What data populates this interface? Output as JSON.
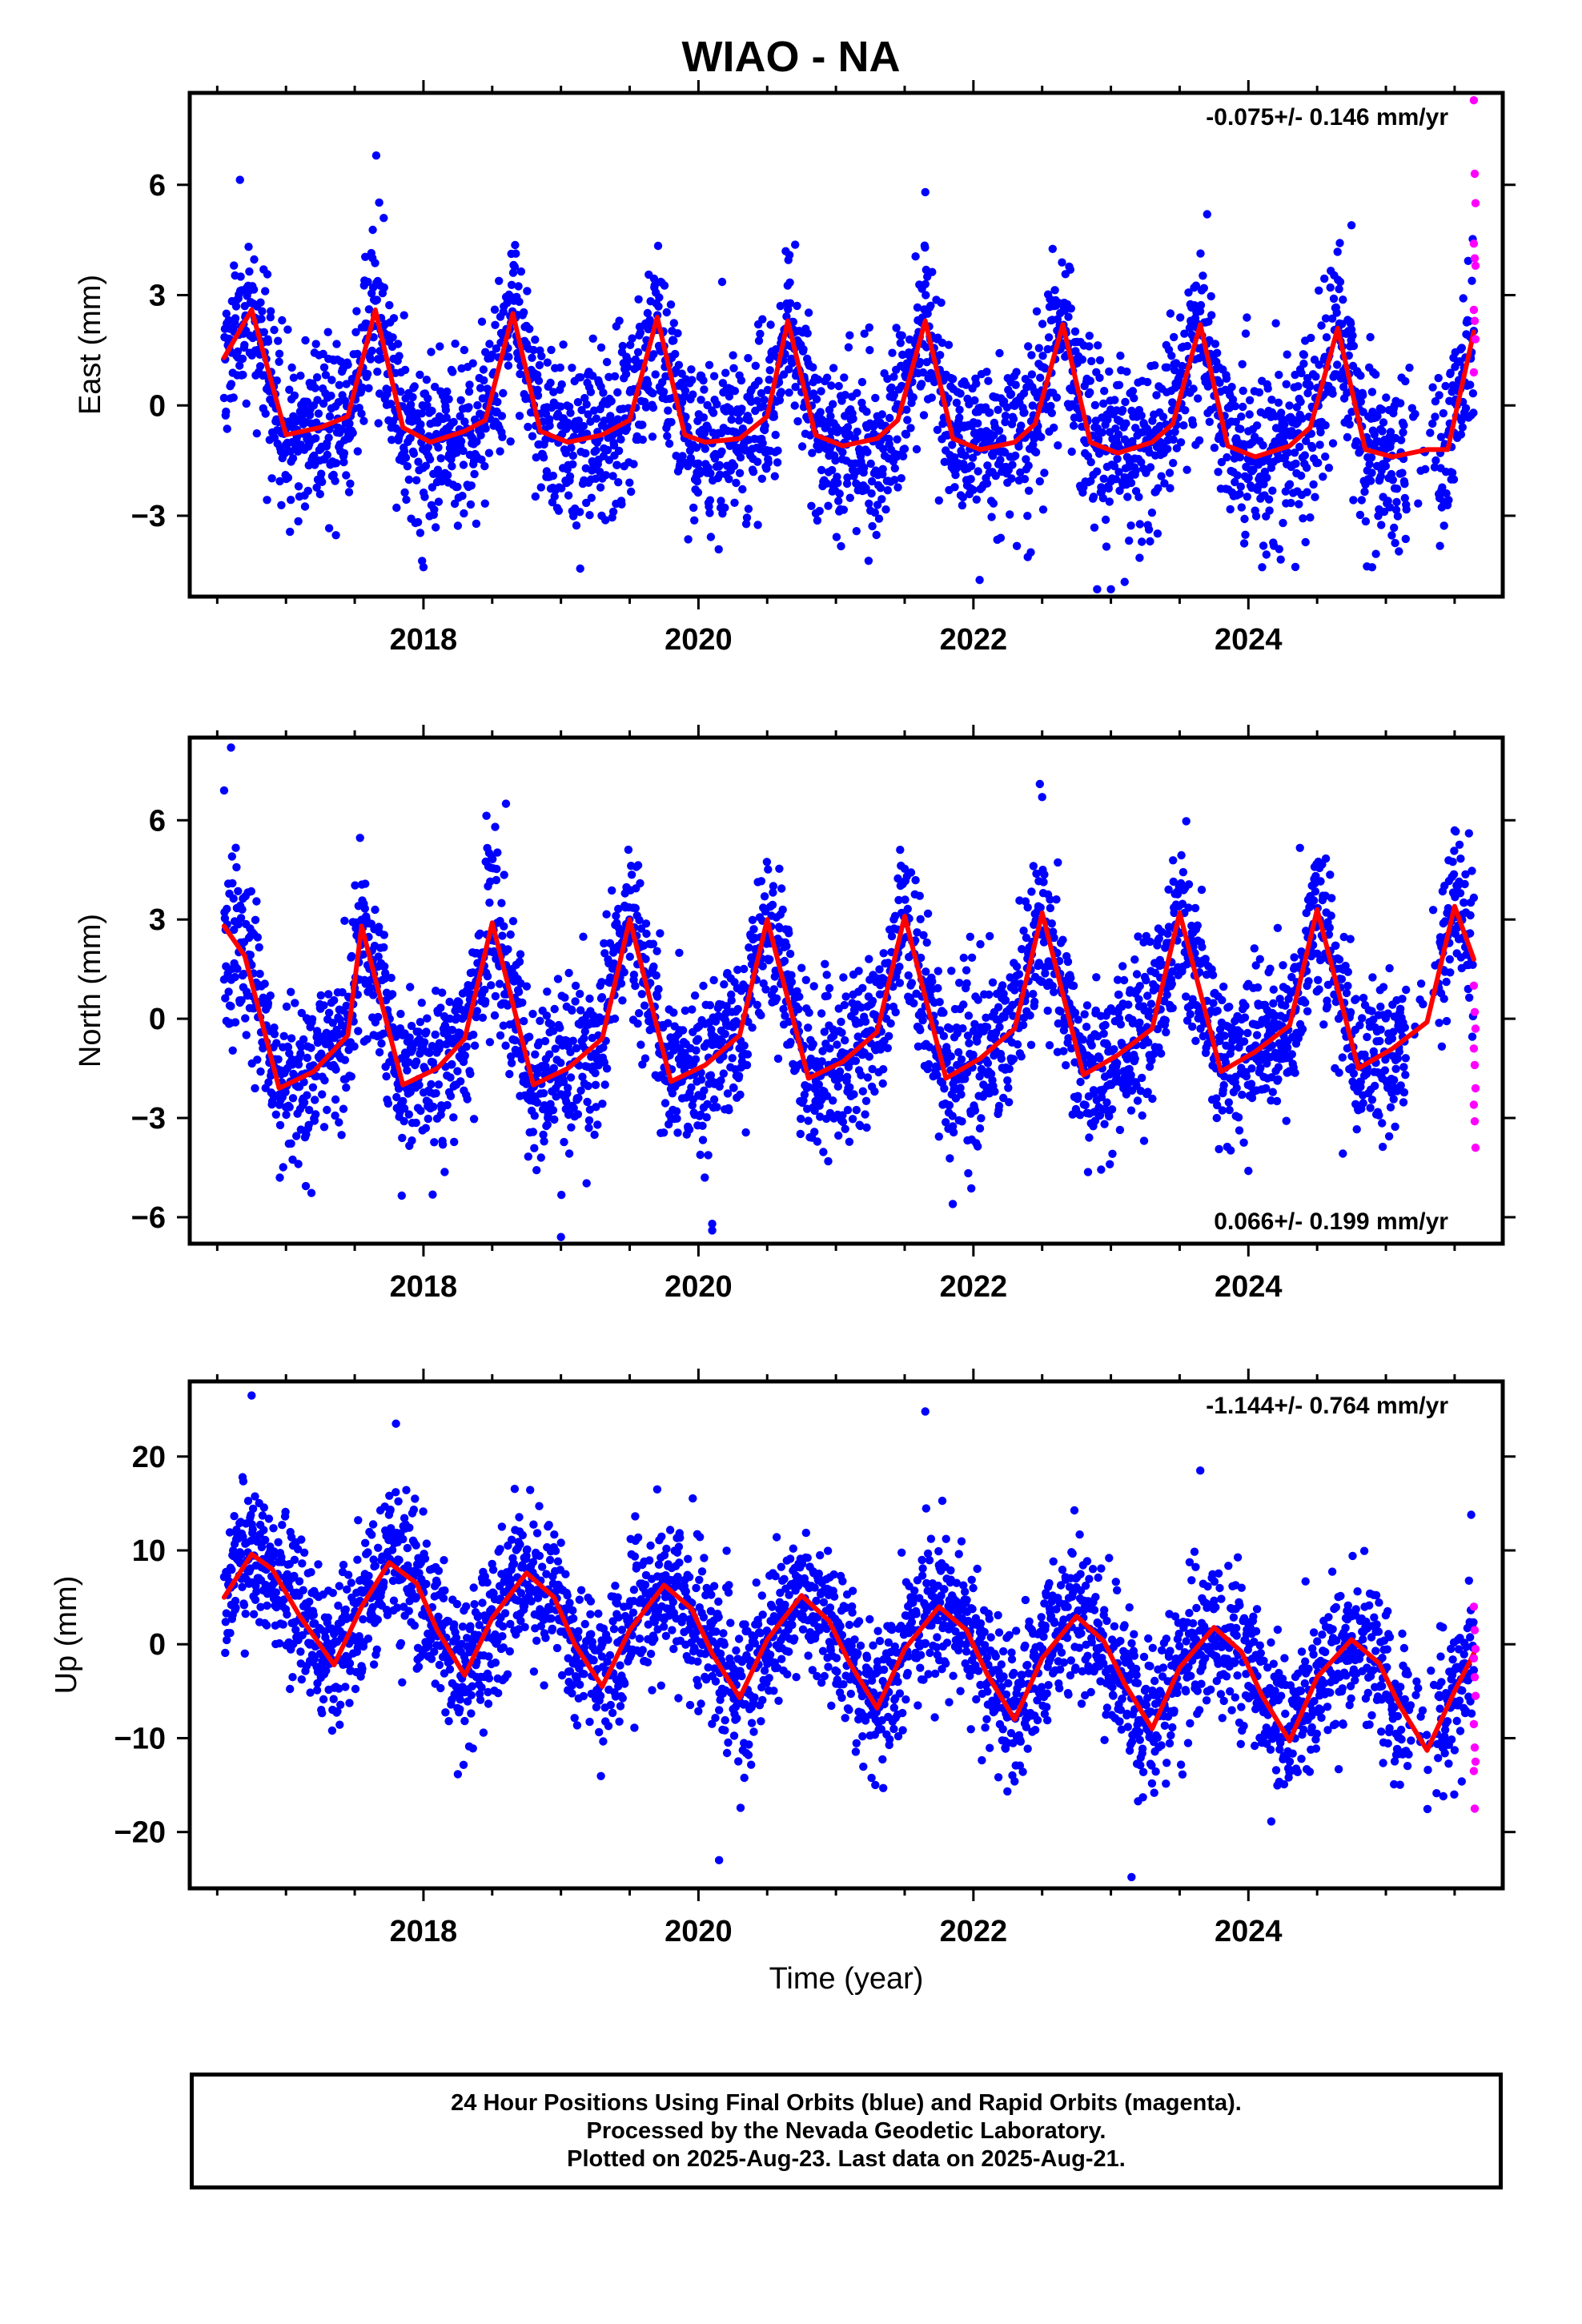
{
  "title": "WIAO - NA",
  "colors": {
    "final_orbits": "#0000ff",
    "rapid_orbits": "#ff00ff",
    "fit": "#ff0000"
  },
  "footer": {
    "line1": "24 Hour Positions Using Final Orbits (blue) and Rapid Orbits (magenta).",
    "line2": "Processed by the Nevada Geodetic Laboratory.",
    "line3": "Plotted on 2025-Aug-23. Last data on 2025-Aug-21."
  },
  "chart_data": [
    {
      "type": "scatter",
      "panel": "east",
      "ylabel": "East (mm)",
      "xlabel": "",
      "xlim": [
        2016.3,
        2025.85
      ],
      "ylim": [
        -5.2,
        8.5
      ],
      "xticks": [
        2018,
        2020,
        2022,
        2024
      ],
      "yticks": [
        -3,
        0,
        3,
        6
      ],
      "rate_label": "-0.075+/- 0.146 mm/yr",
      "rate_position": "top-right",
      "grid": false,
      "data_start": 2016.55,
      "data_end": 2025.64,
      "fit": {
        "name": "seasonal fit",
        "x": [
          2016.55,
          2016.75,
          2017.0,
          2017.25,
          2017.45,
          2017.65,
          2017.85,
          2018.05,
          2018.3,
          2018.45,
          2018.65,
          2018.85,
          2019.05,
          2019.3,
          2019.5,
          2019.7,
          2019.9,
          2020.05,
          2020.3,
          2020.5,
          2020.65,
          2020.85,
          2021.05,
          2021.3,
          2021.45,
          2021.65,
          2021.85,
          2022.05,
          2022.3,
          2022.45,
          2022.65,
          2022.85,
          2023.05,
          2023.3,
          2023.45,
          2023.65,
          2023.85,
          2024.05,
          2024.3,
          2024.45,
          2024.65,
          2024.85,
          2025.05,
          2025.3,
          2025.45,
          2025.64
        ],
        "y": [
          1.3,
          2.6,
          -0.8,
          -0.6,
          -0.3,
          2.6,
          -0.6,
          -1.0,
          -0.7,
          -0.4,
          2.5,
          -0.7,
          -1.0,
          -0.8,
          -0.4,
          2.4,
          -0.8,
          -1.0,
          -0.9,
          -0.3,
          2.3,
          -0.8,
          -1.1,
          -0.9,
          -0.4,
          2.3,
          -0.9,
          -1.2,
          -1.0,
          -0.5,
          2.2,
          -1.0,
          -1.3,
          -1.0,
          -0.5,
          2.2,
          -1.1,
          -1.4,
          -1.1,
          -0.6,
          2.1,
          -1.2,
          -1.4,
          -1.2,
          -1.2,
          2.0
        ]
      },
      "scatter_model": {
        "seasonal_amplitude": 1.85,
        "mean": 0.6,
        "noise_sd": 1.15,
        "seed": 11
      },
      "rapid": {
        "x_start": 2025.64,
        "values": [
          8.3,
          6.3,
          5.5,
          4.4,
          4.0,
          3.8,
          2.6,
          2.3,
          1.8,
          0.9
        ]
      },
      "outliers": {
        "x": [
          2018.0,
          2021.65,
          2022.9,
          2023.0,
          2023.1,
          2024.1,
          2024.9,
          2023.7,
          2024.75
        ],
        "y": [
          -4.4,
          5.8,
          -5.0,
          -5.0,
          -4.8,
          -4.4,
          -4.4,
          5.2,
          4.9
        ]
      }
    },
    {
      "type": "scatter",
      "panel": "north",
      "ylabel": "North (mm)",
      "xlabel": "",
      "xlim": [
        2016.3,
        2025.85
      ],
      "ylim": [
        -6.8,
        8.5
      ],
      "xticks": [
        2018,
        2020,
        2022,
        2024
      ],
      "yticks": [
        -6,
        -3,
        0,
        3,
        6
      ],
      "rate_label": "0.066+/- 0.199 mm/yr",
      "rate_position": "bottom-right",
      "grid": false,
      "data_start": 2016.55,
      "data_end": 2025.64,
      "fit": {
        "name": "seasonal fit",
        "x": [
          2016.55,
          2016.7,
          2016.95,
          2017.2,
          2017.45,
          2017.55,
          2017.85,
          2018.1,
          2018.3,
          2018.5,
          2018.8,
          2019.05,
          2019.3,
          2019.5,
          2019.8,
          2020.05,
          2020.3,
          2020.5,
          2020.8,
          2021.05,
          2021.3,
          2021.5,
          2021.8,
          2022.05,
          2022.3,
          2022.5,
          2022.8,
          2023.05,
          2023.3,
          2023.5,
          2023.8,
          2024.05,
          2024.3,
          2024.5,
          2024.8,
          2025.05,
          2025.3,
          2025.5,
          2025.64
        ],
        "y": [
          2.8,
          1.9,
          -2.1,
          -1.6,
          -0.5,
          2.8,
          -2.0,
          -1.5,
          -0.6,
          2.9,
          -2.0,
          -1.5,
          -0.6,
          3.0,
          -1.9,
          -1.4,
          -0.5,
          3.0,
          -1.8,
          -1.3,
          -0.4,
          3.1,
          -1.8,
          -1.2,
          -0.3,
          3.2,
          -1.7,
          -1.1,
          -0.3,
          3.2,
          -1.6,
          -1.0,
          -0.2,
          3.3,
          -1.5,
          -0.9,
          -0.1,
          3.4,
          1.8
        ]
      },
      "scatter_model": {
        "seasonal_amplitude": 2.4,
        "mean": 0.4,
        "noise_sd": 1.25,
        "seed": 23
      },
      "rapid": {
        "x_start": 2025.64,
        "values": [
          1.0,
          0.2,
          -0.3,
          -0.9,
          -1.4,
          -2.1,
          -2.6,
          -3.1,
          -3.9
        ]
      },
      "outliers": {
        "x": [
          2016.6,
          2016.55,
          2019.0,
          2020.1,
          2020.1,
          2021.85,
          2024.0,
          2018.6,
          2022.5
        ],
        "y": [
          8.2,
          6.9,
          -6.6,
          -6.2,
          -6.4,
          -5.6,
          -4.6,
          6.5,
          6.7
        ]
      }
    },
    {
      "type": "scatter",
      "panel": "up",
      "ylabel": "Up (mm)",
      "xlabel": "Time (year)",
      "xlim": [
        2016.3,
        2025.85
      ],
      "ylim": [
        -26,
        28
      ],
      "xticks": [
        2018,
        2020,
        2022,
        2024
      ],
      "yticks": [
        -20,
        -10,
        0,
        10,
        20
      ],
      "rate_label": "-1.144+/- 0.764 mm/yr",
      "rate_position": "top-right",
      "grid": false,
      "data_start": 2016.55,
      "data_end": 2025.64,
      "fit": {
        "name": "seasonal fit",
        "x": [
          2016.55,
          2016.75,
          2016.9,
          2017.1,
          2017.35,
          2017.55,
          2017.75,
          2017.95,
          2018.1,
          2018.3,
          2018.5,
          2018.75,
          2018.95,
          2019.1,
          2019.3,
          2019.5,
          2019.75,
          2019.95,
          2020.1,
          2020.3,
          2020.5,
          2020.75,
          2020.95,
          2021.1,
          2021.3,
          2021.5,
          2021.75,
          2021.95,
          2022.1,
          2022.3,
          2022.5,
          2022.75,
          2022.95,
          2023.1,
          2023.3,
          2023.5,
          2023.75,
          2023.95,
          2024.1,
          2024.3,
          2024.5,
          2024.75,
          2024.95,
          2025.1,
          2025.3,
          2025.5,
          2025.64
        ],
        "y": [
          5.0,
          9.6,
          8.0,
          3.0,
          -2.2,
          4.0,
          8.7,
          6.5,
          1.5,
          -3.3,
          2.8,
          7.6,
          5.0,
          0.0,
          -4.5,
          1.5,
          6.3,
          3.8,
          -1.0,
          -5.7,
          0.5,
          5.2,
          2.5,
          -2.0,
          -6.8,
          -0.5,
          4.0,
          1.5,
          -3.2,
          -8.0,
          -1.5,
          3.0,
          0.3,
          -4.2,
          -9.0,
          -2.5,
          1.8,
          -0.8,
          -5.5,
          -10.3,
          -3.5,
          0.5,
          -2.0,
          -6.5,
          -11.3,
          -5.0,
          -1.0
        ]
      },
      "scatter_model": {
        "seasonal_amplitude": 5.0,
        "mean": 0.0,
        "noise_sd": 4.0,
        "seed": 37
      },
      "rapid": {
        "x_start": 2025.64,
        "values": [
          4.0,
          1.5,
          -0.5,
          -1.5,
          -3.5,
          -5.5,
          -8.5,
          -11.0,
          -12.5,
          -13.5,
          -17.5
        ]
      },
      "outliers": {
        "x": [
          2016.75,
          2017.8,
          2021.65,
          2020.15,
          2023.15,
          2019.7,
          2023.65
        ],
        "y": [
          26.5,
          23.5,
          24.8,
          -23.0,
          -24.8,
          16.5,
          18.5
        ]
      }
    }
  ]
}
